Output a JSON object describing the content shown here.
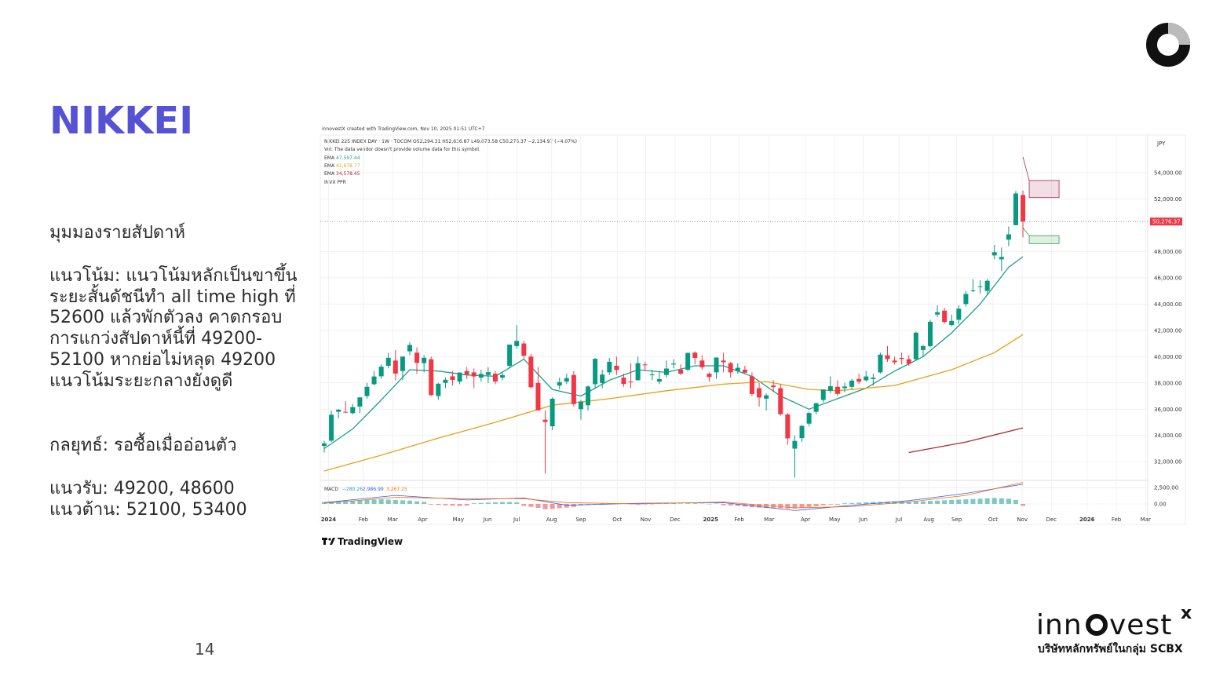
{
  "slide": {
    "title": "NIKKEI",
    "subheading": "มุมมองรายสัปดาห์",
    "paragraph": [
      "แนวโน้ม: แนวโน้มหลักเป็นขาขึ้น",
      "ระยะสั้นดัชนีทำ all time high ที่",
      "52600 แล้วพักตัวลง คาดกรอบ",
      "การแกว่งสัปดาห์นี้ที่ 49200-",
      "52100 หากย่อไม่หลุด 49200",
      "แนวโน้มระยะกลางยังดูดี"
    ],
    "strategy": "กลยุทธ์: รอซื้อเมื่ออ่อนตัว",
    "support": "แนวรับ: 49200, 48600",
    "resistance": "แนวต้าน: 52100, 53400",
    "page_number": "14",
    "logo_parts": [
      "inn",
      "vest",
      "x"
    ],
    "logo_caption": "บริษัทหลักทรัพย์ในกลุ่ม SCBX",
    "chart_credit": "TradingView"
  },
  "chart_data": {
    "type": "candlestick",
    "credit": "innovestX created with TradingView.com, Nov 10, 2025 01:51 UTC+7",
    "title": "NIKKEI 225 INDEX DAY · 1W · TOCOM  O52,294.31  H52,636.87  L49,073.58  C50,276.37  −2,134.97 (−4.07%)",
    "volume_note": "Vol: The data vendor doesn't provide volume data for this symbol.",
    "indicator_label": "INVX PPR",
    "currency": "JPY",
    "up_color": "#089981",
    "down_color": "#f23645",
    "xlim": [
      -0.55,
      115.5
    ],
    "xticks": [
      {
        "value": 0.6,
        "label": "2024"
      },
      {
        "value": 5.5,
        "label": "Feb"
      },
      {
        "value": 9.6,
        "label": "Mar"
      },
      {
        "value": 13.8,
        "label": "Apr"
      },
      {
        "value": 18.8,
        "label": "May"
      },
      {
        "value": 22.9,
        "label": "Jun"
      },
      {
        "value": 27.0,
        "label": "Jul"
      },
      {
        "value": 31.9,
        "label": "Aug"
      },
      {
        "value": 36.0,
        "label": "Sep"
      },
      {
        "value": 41.1,
        "label": "Oct"
      },
      {
        "value": 45.1,
        "label": "Nov"
      },
      {
        "value": 49.2,
        "label": "Dec"
      },
      {
        "value": 54.2,
        "label": "2025"
      },
      {
        "value": 58.2,
        "label": "Feb"
      },
      {
        "value": 62.4,
        "label": "Mar"
      },
      {
        "value": 67.5,
        "label": "Apr"
      },
      {
        "value": 71.6,
        "label": "May"
      },
      {
        "value": 75.6,
        "label": "Jun"
      },
      {
        "value": 80.6,
        "label": "Jul"
      },
      {
        "value": 84.8,
        "label": "Aug"
      },
      {
        "value": 88.7,
        "label": "Sep"
      },
      {
        "value": 93.8,
        "label": "Oct"
      },
      {
        "value": 97.9,
        "label": "Nov"
      },
      {
        "value": 102.0,
        "label": "Dec"
      },
      {
        "value": 107.0,
        "label": "2026"
      },
      {
        "value": 111.1,
        "label": "Feb"
      },
      {
        "value": 115.2,
        "label": "Mar"
      }
    ],
    "ylim": [
      30700,
      56800
    ],
    "yticks": [
      {
        "value": 54000,
        "label": "54,000.00"
      },
      {
        "value": 52000,
        "label": "52,000.00"
      },
      {
        "value": 48000,
        "label": "48,000.00"
      },
      {
        "value": 46000,
        "label": "46,000.00"
      },
      {
        "value": 44000,
        "label": "44,000.00"
      },
      {
        "value": 42000,
        "label": "42,000.00"
      },
      {
        "value": 40000,
        "label": "40,000.00"
      },
      {
        "value": 38000,
        "label": "38,000.00"
      },
      {
        "value": 36000,
        "label": "36,000.00"
      },
      {
        "value": 34000,
        "label": "34,000.00"
      },
      {
        "value": 32000,
        "label": "32,000.00"
      }
    ],
    "grid": true,
    "last_price": 50276.37,
    "last_price_label": "50,276.37",
    "candles": [
      [
        33200,
        33600,
        32700,
        33400
      ],
      [
        33600,
        35900,
        33500,
        35577
      ],
      [
        35800,
        36000,
        35300,
        35963
      ],
      [
        35800,
        36600,
        35700,
        35751
      ],
      [
        35700,
        36400,
        35600,
        36158
      ],
      [
        36200,
        36900,
        35700,
        36897
      ],
      [
        37000,
        38000,
        36800,
        37703
      ],
      [
        37900,
        38900,
        37800,
        38487
      ],
      [
        38500,
        39400,
        38300,
        39233
      ],
      [
        39300,
        40300,
        39100,
        39910
      ],
      [
        39700,
        40500,
        38200,
        38707
      ],
      [
        38900,
        40000,
        38200,
        40004
      ],
      [
        40400,
        41100,
        40100,
        40888
      ],
      [
        40300,
        40700,
        38700,
        39523
      ],
      [
        39500,
        40100,
        38800,
        39911
      ],
      [
        39800,
        40000,
        37000,
        37068
      ],
      [
        37000,
        38000,
        36700,
        37934
      ],
      [
        38000,
        38400,
        37600,
        38236
      ],
      [
        38500,
        38900,
        37800,
        38229
      ],
      [
        38100,
        38800,
        37900,
        38787
      ],
      [
        38900,
        39200,
        38300,
        38646
      ],
      [
        38800,
        39100,
        37600,
        38487
      ],
      [
        38400,
        39000,
        38100,
        38683
      ],
      [
        38600,
        39200,
        38000,
        38814
      ],
      [
        38700,
        38900,
        37900,
        38102
      ],
      [
        38400,
        38800,
        38200,
        38596
      ],
      [
        39300,
        40900,
        39100,
        40912
      ],
      [
        40800,
        42400,
        40600,
        41190
      ],
      [
        41000,
        41200,
        39800,
        40063
      ],
      [
        40000,
        40200,
        37600,
        37667
      ],
      [
        38000,
        39200,
        35900,
        35909
      ],
      [
        35200,
        35900,
        31100,
        35025
      ],
      [
        34700,
        36900,
        34400,
        36793
      ],
      [
        37800,
        38400,
        37500,
        38062
      ],
      [
        38100,
        38700,
        37900,
        38364
      ],
      [
        38600,
        38900,
        36200,
        36391
      ],
      [
        36000,
        36700,
        35200,
        36582
      ],
      [
        36300,
        37800,
        35900,
        37723
      ],
      [
        37900,
        39900,
        37600,
        39829
      ],
      [
        38000,
        39000,
        37600,
        38635
      ],
      [
        38800,
        39900,
        38600,
        39605
      ],
      [
        39300,
        40000,
        38600,
        38981
      ],
      [
        38400,
        38700,
        37700,
        37913
      ],
      [
        38100,
        39500,
        37600,
        38054
      ],
      [
        38200,
        40000,
        38200,
        39500
      ],
      [
        39400,
        39600,
        38900,
        39381
      ],
      [
        38600,
        39000,
        38200,
        38642
      ],
      [
        38100,
        38900,
        37900,
        38283
      ],
      [
        38600,
        39700,
        38400,
        39091
      ],
      [
        39400,
        39800,
        39100,
        39470
      ],
      [
        39000,
        39400,
        38600,
        38702
      ],
      [
        39000,
        40300,
        38900,
        40281
      ],
      [
        40300,
        40400,
        39400,
        39895
      ],
      [
        39700,
        40100,
        39000,
        39190
      ],
      [
        38700,
        38800,
        38100,
        38451
      ],
      [
        38800,
        39900,
        38300,
        39931
      ],
      [
        39700,
        40300,
        38800,
        39572
      ],
      [
        39500,
        39600,
        38400,
        38801
      ],
      [
        38900,
        39500,
        38700,
        39149
      ],
      [
        39000,
        39300,
        38700,
        38776
      ],
      [
        38500,
        38800,
        37000,
        37155
      ],
      [
        37600,
        38000,
        36200,
        36887
      ],
      [
        36800,
        37200,
        35900,
        37053
      ],
      [
        37800,
        38200,
        37300,
        37677
      ],
      [
        37600,
        37900,
        35500,
        35617
      ],
      [
        35600,
        35700,
        33300,
        33780
      ],
      [
        33000,
        34000,
        30800,
        33586
      ],
      [
        33800,
        34800,
        33500,
        34730
      ],
      [
        34900,
        35800,
        34700,
        35705
      ],
      [
        35800,
        36500,
        35600,
        36452
      ],
      [
        36700,
        37500,
        36500,
        37503
      ],
      [
        37400,
        38500,
        37200,
        37753
      ],
      [
        37700,
        38200,
        37000,
        37160
      ],
      [
        37600,
        38000,
        37300,
        37724
      ],
      [
        37700,
        38300,
        37500,
        38173
      ],
      [
        38300,
        38700,
        37900,
        38089
      ],
      [
        38200,
        38900,
        38100,
        38488
      ],
      [
        38300,
        38700,
        37800,
        38403
      ],
      [
        38800,
        40300,
        38700,
        40150
      ],
      [
        40100,
        40800,
        39600,
        39811
      ],
      [
        39700,
        40000,
        39400,
        39570
      ],
      [
        39900,
        40300,
        39400,
        39819
      ],
      [
        39800,
        40100,
        39300,
        39459
      ],
      [
        39800,
        41900,
        39700,
        41820
      ],
      [
        40500,
        40900,
        40000,
        40799
      ],
      [
        40800,
        42800,
        40700,
        42649
      ],
      [
        43200,
        43900,
        43000,
        43378
      ],
      [
        43500,
        43700,
        42500,
        42633
      ],
      [
        42400,
        43200,
        42300,
        42718
      ],
      [
        42800,
        43900,
        42500,
        43644
      ],
      [
        44000,
        45000,
        43800,
        44768
      ],
      [
        45000,
        45900,
        44900,
        45045
      ],
      [
        45300,
        45800,
        44800,
        45355
      ],
      [
        45000,
        45900,
        44700,
        45770
      ],
      [
        47700,
        48500,
        47400,
        47944
      ],
      [
        47400,
        48300,
        46500,
        47582
      ],
      [
        48900,
        49900,
        48400,
        49299
      ],
      [
        50000,
        52600,
        50000,
        52411.34
      ],
      [
        52294.31,
        52636.87,
        49073.58,
        50276.37
      ]
    ],
    "lines": [
      {
        "label": "EMA",
        "value_label": "47,597.44",
        "color": "#1e9e8a",
        "x": [
          0,
          4,
          8,
          12,
          16,
          20,
          24,
          28,
          32,
          36,
          40,
          44,
          48,
          52,
          56,
          60,
          64,
          68,
          72,
          76,
          80,
          84,
          88,
          92,
          96,
          98
        ],
        "values": [
          33000,
          34500,
          36700,
          39000,
          38900,
          38600,
          38500,
          39800,
          37500,
          37000,
          38200,
          39000,
          38800,
          39300,
          39300,
          38500,
          37000,
          36000,
          36800,
          37600,
          38900,
          40000,
          41800,
          44000,
          46800,
          47597.44
        ]
      },
      {
        "label": "EMA",
        "value_label": "41,678.77",
        "color": "#e6a11a",
        "x": [
          0,
          8,
          16,
          24,
          32,
          40,
          48,
          56,
          62,
          68,
          72,
          80,
          88,
          94,
          98
        ],
        "values": [
          31300,
          32500,
          33800,
          35000,
          36300,
          36800,
          37400,
          37900,
          38100,
          37500,
          37400,
          37800,
          39000,
          40300,
          41678.77
        ]
      },
      {
        "label": "EMA",
        "value_label": "34,578.45",
        "color": "#b3262f",
        "x": [
          82,
          90,
          98
        ],
        "values": [
          32700,
          33500,
          34578.45
        ]
      }
    ],
    "ppr_zones": [
      {
        "low": 52100,
        "high": 53400,
        "color": "#a3284e"
      },
      {
        "low": 48600,
        "high": 49200,
        "color": "#2e9e4a"
      }
    ],
    "macd": {
      "label": "MACD",
      "ylim": [
        -1550,
        3450
      ],
      "yticks": [
        {
          "value": 2500,
          "label": "2,500.00"
        },
        {
          "value": 0,
          "label": "0.00"
        }
      ],
      "histogram": [
        300,
        350,
        400,
        450,
        500,
        550,
        600,
        650,
        700,
        650,
        600,
        550,
        500,
        400,
        300,
        -100,
        -150,
        -200,
        -250,
        -300,
        -250,
        100,
        150,
        200,
        250,
        300,
        300,
        250,
        -300,
        -450,
        -600,
        -800,
        -750,
        -650,
        -550,
        -450,
        -200,
        -100,
        0,
        50,
        100,
        100,
        50,
        0,
        -100,
        -50,
        0,
        50,
        100,
        100,
        50,
        100,
        100,
        50,
        0,
        50,
        -200,
        -250,
        -300,
        -400,
        -500,
        -550,
        -600,
        -600,
        -650,
        -700,
        -700,
        -600,
        -450,
        -350,
        -200,
        -100,
        -100,
        100,
        150,
        200,
        250,
        300,
        300,
        350,
        400,
        400,
        350,
        400,
        400,
        450,
        500,
        550,
        600,
        650,
        700,
        750,
        800,
        850,
        900,
        850,
        800,
        600,
        -280.26
      ],
      "hist_label": "−280.26",
      "series": [
        {
          "value_label": "2,986.99",
          "color": "#2962ff",
          "x": [
            0,
            10,
            20,
            28,
            34,
            44,
            56,
            66,
            74,
            82,
            90,
            98
          ],
          "values": [
            200,
            1300,
            600,
            900,
            -200,
            100,
            200,
            -1000,
            -200,
            500,
            1600,
            2986.99
          ]
        },
        {
          "value_label": "3,267.25",
          "color": "#ff6d00",
          "x": [
            0,
            10,
            20,
            28,
            34,
            44,
            56,
            66,
            74,
            82,
            90,
            98
          ],
          "values": [
            100,
            1000,
            800,
            800,
            200,
            0,
            300,
            -600,
            -400,
            300,
            1300,
            3267.25
          ]
        }
      ]
    }
  }
}
